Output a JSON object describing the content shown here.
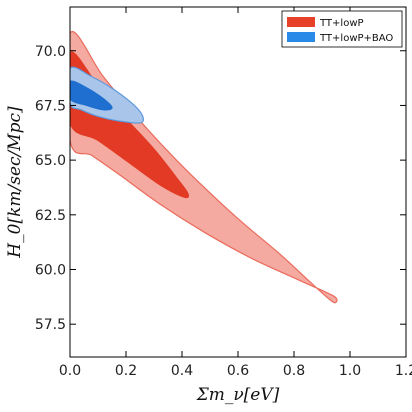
{
  "chart_data": {
    "type": "contour",
    "xlabel": "Σm_ν[eV]",
    "ylabel": "H_0[km/sec/Mpc]",
    "xlim": [
      0.0,
      1.2
    ],
    "ylim": [
      56.0,
      72.0
    ],
    "x_ticks": [
      "0.0",
      "0.2",
      "0.4",
      "0.6",
      "0.8",
      "1.0",
      "1.2"
    ],
    "y_ticks": [
      {
        "value": 57.5,
        "label": "57.5"
      },
      {
        "value": 60.0,
        "label": "60.0"
      },
      {
        "value": 62.5,
        "label": "62.5"
      },
      {
        "value": 65.0,
        "label": "65.0"
      },
      {
        "value": 67.5,
        "label": "67.5"
      },
      {
        "value": 70.0,
        "label": "70.0"
      }
    ],
    "grid": false,
    "legend_position": "top-right",
    "legend": [
      {
        "label": "TT+lowP",
        "color": "#e8412a"
      },
      {
        "label": "TT+lowP+BAO",
        "color": "#2a8ae8"
      }
    ],
    "series": [
      {
        "name": "TT+lowP",
        "level": "95%",
        "fill": "#f4aaa0",
        "stroke": "#ea6b5c",
        "points": [
          [
            0.0,
            70.8
          ],
          [
            0.12,
            68.8
          ],
          [
            0.25,
            66.8
          ],
          [
            0.38,
            65.0
          ],
          [
            0.5,
            63.5
          ],
          [
            0.62,
            62.1
          ],
          [
            0.75,
            60.7
          ],
          [
            0.86,
            59.4
          ],
          [
            0.93,
            58.6
          ],
          [
            0.95,
            58.5
          ],
          [
            0.94,
            58.8
          ],
          [
            0.82,
            59.5
          ],
          [
            0.65,
            60.5
          ],
          [
            0.48,
            61.7
          ],
          [
            0.32,
            63.0
          ],
          [
            0.18,
            64.3
          ],
          [
            0.08,
            65.2
          ],
          [
            0.0,
            65.9
          ]
        ]
      },
      {
        "name": "TT+lowP",
        "level": "68%",
        "fill": "#e23a24",
        "stroke": "#e23a24",
        "points": [
          [
            0.0,
            69.9
          ],
          [
            0.1,
            68.4
          ],
          [
            0.2,
            66.9
          ],
          [
            0.3,
            65.5
          ],
          [
            0.38,
            64.2
          ],
          [
            0.42,
            63.5
          ],
          [
            0.41,
            63.3
          ],
          [
            0.33,
            63.8
          ],
          [
            0.22,
            64.8
          ],
          [
            0.1,
            65.9
          ],
          [
            0.0,
            66.7
          ]
        ]
      },
      {
        "name": "TT+lowP+BAO",
        "level": "95%",
        "fill": "#a9c6ea",
        "stroke": "#5d97dc",
        "points": [
          [
            0.0,
            69.2
          ],
          [
            0.08,
            68.8
          ],
          [
            0.16,
            68.2
          ],
          [
            0.23,
            67.5
          ],
          [
            0.26,
            67.0
          ],
          [
            0.25,
            66.7
          ],
          [
            0.17,
            66.8
          ],
          [
            0.1,
            67.0
          ],
          [
            0.04,
            67.3
          ],
          [
            0.0,
            67.6
          ]
        ]
      },
      {
        "name": "TT+lowP+BAO",
        "level": "68%",
        "fill": "#1f6fd1",
        "stroke": "#1f6fd1",
        "points": [
          [
            0.0,
            68.6
          ],
          [
            0.06,
            68.3
          ],
          [
            0.12,
            67.8
          ],
          [
            0.15,
            67.4
          ],
          [
            0.12,
            67.3
          ],
          [
            0.06,
            67.5
          ],
          [
            0.0,
            67.8
          ]
        ]
      }
    ]
  }
}
